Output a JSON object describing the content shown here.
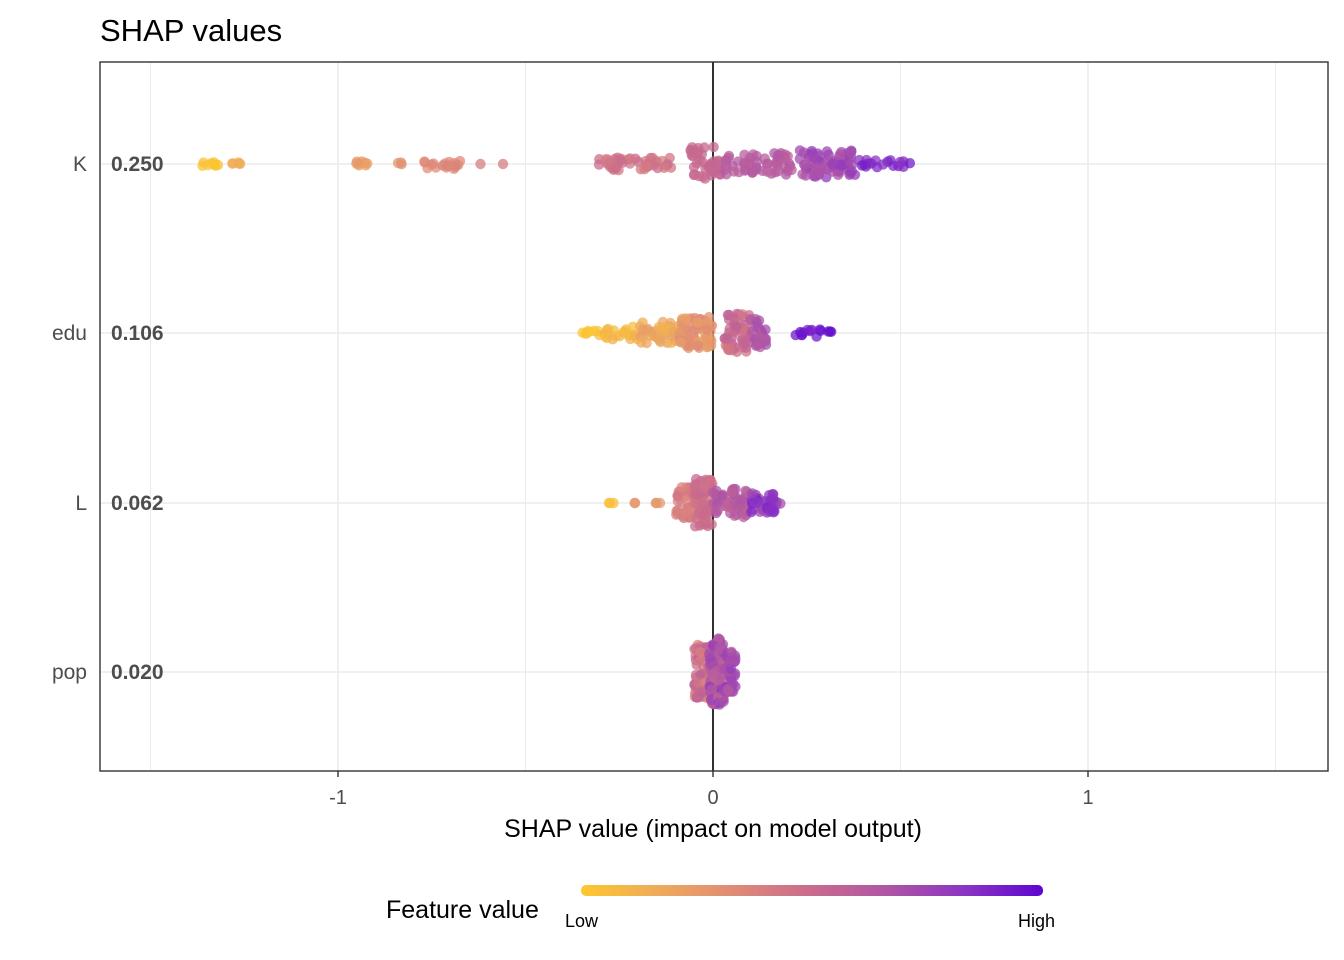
{
  "chart_data": {
    "type": "scatter",
    "subtype": "shap-beeswarm",
    "title": "SHAP values",
    "xlabel": "SHAP value (impact on model output)",
    "ylabel": "",
    "xlim": [
      -1.63,
      1.63
    ],
    "x_ticks": [
      -1,
      0,
      1
    ],
    "x_tick_labels": [
      "-1",
      "0",
      "1"
    ],
    "x_minor_grid": [
      -1.5,
      -0.5,
      0.5,
      1.5
    ],
    "grid": true,
    "zero_line": true,
    "features": [
      {
        "name": "K",
        "mean_abs_shap": "0.250",
        "clusters": [
          {
            "x_min": -1.37,
            "x_max": -1.32,
            "n": 8,
            "value_low": 0.0,
            "value_high": 0.05,
            "spread": 0.3
          },
          {
            "x_min": -1.29,
            "x_max": -1.26,
            "n": 5,
            "value_low": 0.12,
            "value_high": 0.18,
            "spread": 0.3
          },
          {
            "x_min": -0.96,
            "x_max": -0.92,
            "n": 8,
            "value_low": 0.22,
            "value_high": 0.27,
            "spread": 0.4
          },
          {
            "x_min": -0.84,
            "x_max": -0.82,
            "n": 3,
            "value_low": 0.27,
            "value_high": 0.3,
            "spread": 0.3
          },
          {
            "x_min": -0.77,
            "x_max": -0.67,
            "n": 20,
            "value_low": 0.3,
            "value_high": 0.37,
            "spread": 0.6
          },
          {
            "x_min": -0.62,
            "x_max": -0.62,
            "n": 1,
            "value_low": 0.4,
            "value_high": 0.4,
            "spread": 0.0
          },
          {
            "x_min": -0.56,
            "x_max": -0.56,
            "n": 1,
            "value_low": 0.4,
            "value_high": 0.4,
            "spread": 0.0
          },
          {
            "x_min": -0.33,
            "x_max": -0.11,
            "n": 45,
            "value_low": 0.4,
            "value_high": 0.5,
            "spread": 0.8
          },
          {
            "x_min": -0.06,
            "x_max": 0.02,
            "n": 40,
            "value_low": 0.5,
            "value_high": 0.55,
            "spread": 2.2
          },
          {
            "x_min": 0.03,
            "x_max": 0.21,
            "n": 55,
            "value_low": 0.58,
            "value_high": 0.66,
            "spread": 1.4
          },
          {
            "x_min": 0.23,
            "x_max": 0.38,
            "n": 70,
            "value_low": 0.66,
            "value_high": 0.8,
            "spread": 1.7
          },
          {
            "x_min": 0.39,
            "x_max": 0.55,
            "n": 18,
            "value_low": 0.82,
            "value_high": 0.92,
            "spread": 0.5
          }
        ]
      },
      {
        "name": "edu",
        "mean_abs_shap": "0.106",
        "clusters": [
          {
            "x_min": -0.35,
            "x_max": -0.3,
            "n": 8,
            "value_low": 0.0,
            "value_high": 0.06,
            "spread": 0.4
          },
          {
            "x_min": -0.29,
            "x_max": -0.2,
            "n": 20,
            "value_low": 0.05,
            "value_high": 0.15,
            "spread": 0.8
          },
          {
            "x_min": -0.2,
            "x_max": -0.09,
            "n": 45,
            "value_low": 0.12,
            "value_high": 0.25,
            "spread": 1.4
          },
          {
            "x_min": -0.09,
            "x_max": 0.0,
            "n": 70,
            "value_low": 0.22,
            "value_high": 0.35,
            "spread": 2.0
          },
          {
            "x_min": 0.03,
            "x_max": 0.1,
            "n": 55,
            "value_low": 0.4,
            "value_high": 0.6,
            "spread": 2.4
          },
          {
            "x_min": 0.1,
            "x_max": 0.15,
            "n": 25,
            "value_low": 0.6,
            "value_high": 0.72,
            "spread": 1.8
          },
          {
            "x_min": 0.22,
            "x_max": 0.32,
            "n": 14,
            "value_low": 0.9,
            "value_high": 0.98,
            "spread": 0.5
          }
        ]
      },
      {
        "name": "L",
        "mean_abs_shap": "0.062",
        "clusters": [
          {
            "x_min": -0.28,
            "x_max": -0.24,
            "n": 3,
            "value_low": 0.0,
            "value_high": 0.06,
            "spread": 0.0
          },
          {
            "x_min": -0.22,
            "x_max": -0.13,
            "n": 5,
            "value_low": 0.25,
            "value_high": 0.35,
            "spread": 0.0
          },
          {
            "x_min": -0.1,
            "x_max": -0.05,
            "n": 35,
            "value_low": 0.35,
            "value_high": 0.45,
            "spread": 2.0
          },
          {
            "x_min": -0.05,
            "x_max": 0.0,
            "n": 60,
            "value_low": 0.45,
            "value_high": 0.52,
            "spread": 3.0
          },
          {
            "x_min": 0.0,
            "x_max": 0.1,
            "n": 60,
            "value_low": 0.55,
            "value_high": 0.7,
            "spread": 1.8
          },
          {
            "x_min": 0.1,
            "x_max": 0.18,
            "n": 35,
            "value_low": 0.7,
            "value_high": 0.9,
            "spread": 1.2
          }
        ]
      },
      {
        "name": "pop",
        "mean_abs_shap": "0.020",
        "clusters": [
          {
            "x_min": -0.05,
            "x_max": 0.0,
            "n": 90,
            "value_low": 0.35,
            "value_high": 0.6,
            "spread": 3.4
          },
          {
            "x_min": -0.01,
            "x_max": 0.03,
            "n": 110,
            "value_low": 0.55,
            "value_high": 0.8,
            "spread": 4.2
          },
          {
            "x_min": 0.03,
            "x_max": 0.06,
            "n": 40,
            "value_low": 0.65,
            "value_high": 0.8,
            "spread": 2.6
          }
        ]
      }
    ],
    "legend": {
      "title": "Feature value",
      "low_label": "Low",
      "high_label": "High",
      "position": "bottom",
      "colors": [
        "#fcc72f",
        "#eeab5a",
        "#df8a78",
        "#c96b8d",
        "#ae55a6",
        "#8b34c3",
        "#5c06d0"
      ]
    }
  },
  "colors": {
    "panel_border": "#333333",
    "grid": "#ebebeb",
    "zero_line": "#000000"
  }
}
